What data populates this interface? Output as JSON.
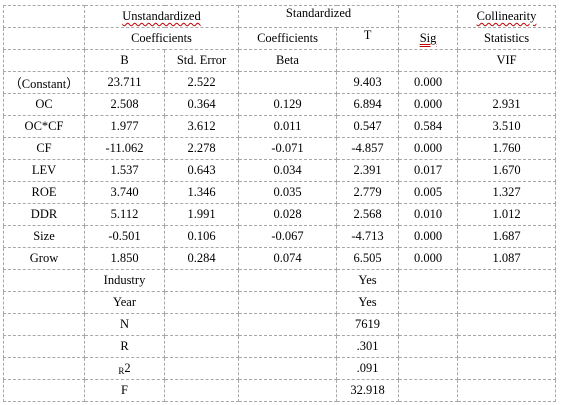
{
  "header": {
    "unstandardized_line1": "Unstandardized",
    "unstandardized_line2": "Coefficients",
    "standardized": "Standardized",
    "collinearity_line1": "Collinearity",
    "coefficients": "Coefficients",
    "t": "T",
    "sig": "Sig",
    "statistics": "Statistics",
    "b": "B",
    "std_error": "Std. Error",
    "beta": "Beta",
    "vif": "VIF"
  },
  "rows": [
    {
      "name": "（Constant）",
      "b": "23.711",
      "se": "2.522",
      "beta": "",
      "t": "9.403",
      "sig": "0.000",
      "vif": ""
    },
    {
      "name": "OC",
      "b": "2.508",
      "se": "0.364",
      "beta": "0.129",
      "t": "6.894",
      "sig": "0.000",
      "vif": "2.931"
    },
    {
      "name": "OC*CF",
      "b": "1.977",
      "se": "3.612",
      "beta": "0.011",
      "t": "0.547",
      "sig": "0.584",
      "vif": "3.510"
    },
    {
      "name": "CF",
      "b": "-11.062",
      "se": "2.278",
      "beta": "-0.071",
      "t": "-4.857",
      "sig": "0.000",
      "vif": "1.760"
    },
    {
      "name": "LEV",
      "b": "1.537",
      "se": "0.643",
      "beta": "0.034",
      "t": "2.391",
      "sig": "0.017",
      "vif": "1.670"
    },
    {
      "name": "ROE",
      "b": "3.740",
      "se": "1.346",
      "beta": "0.035",
      "t": "2.779",
      "sig": "0.005",
      "vif": "1.327"
    },
    {
      "name": "DDR",
      "b": "5.112",
      "se": "1.991",
      "beta": "0.028",
      "t": "2.568",
      "sig": "0.010",
      "vif": "1.012"
    },
    {
      "name": "Size",
      "b": "-0.501",
      "se": "0.106",
      "beta": "-0.067",
      "t": "-4.713",
      "sig": "0.000",
      "vif": "1.687"
    },
    {
      "name": "Grow",
      "b": "1.850",
      "se": "0.284",
      "beta": "0.074",
      "t": "6.505",
      "sig": "0.000",
      "vif": "1.087"
    }
  ],
  "summary": [
    {
      "label": "Industry",
      "value": "Yes"
    },
    {
      "label": "Year",
      "value": "Yes"
    },
    {
      "label": "N",
      "value": "7619"
    },
    {
      "label": "R",
      "value": ".301"
    },
    {
      "label_prefix": "R",
      "label": "2",
      "value": ".091"
    },
    {
      "label": "F",
      "value": "32.918"
    }
  ]
}
